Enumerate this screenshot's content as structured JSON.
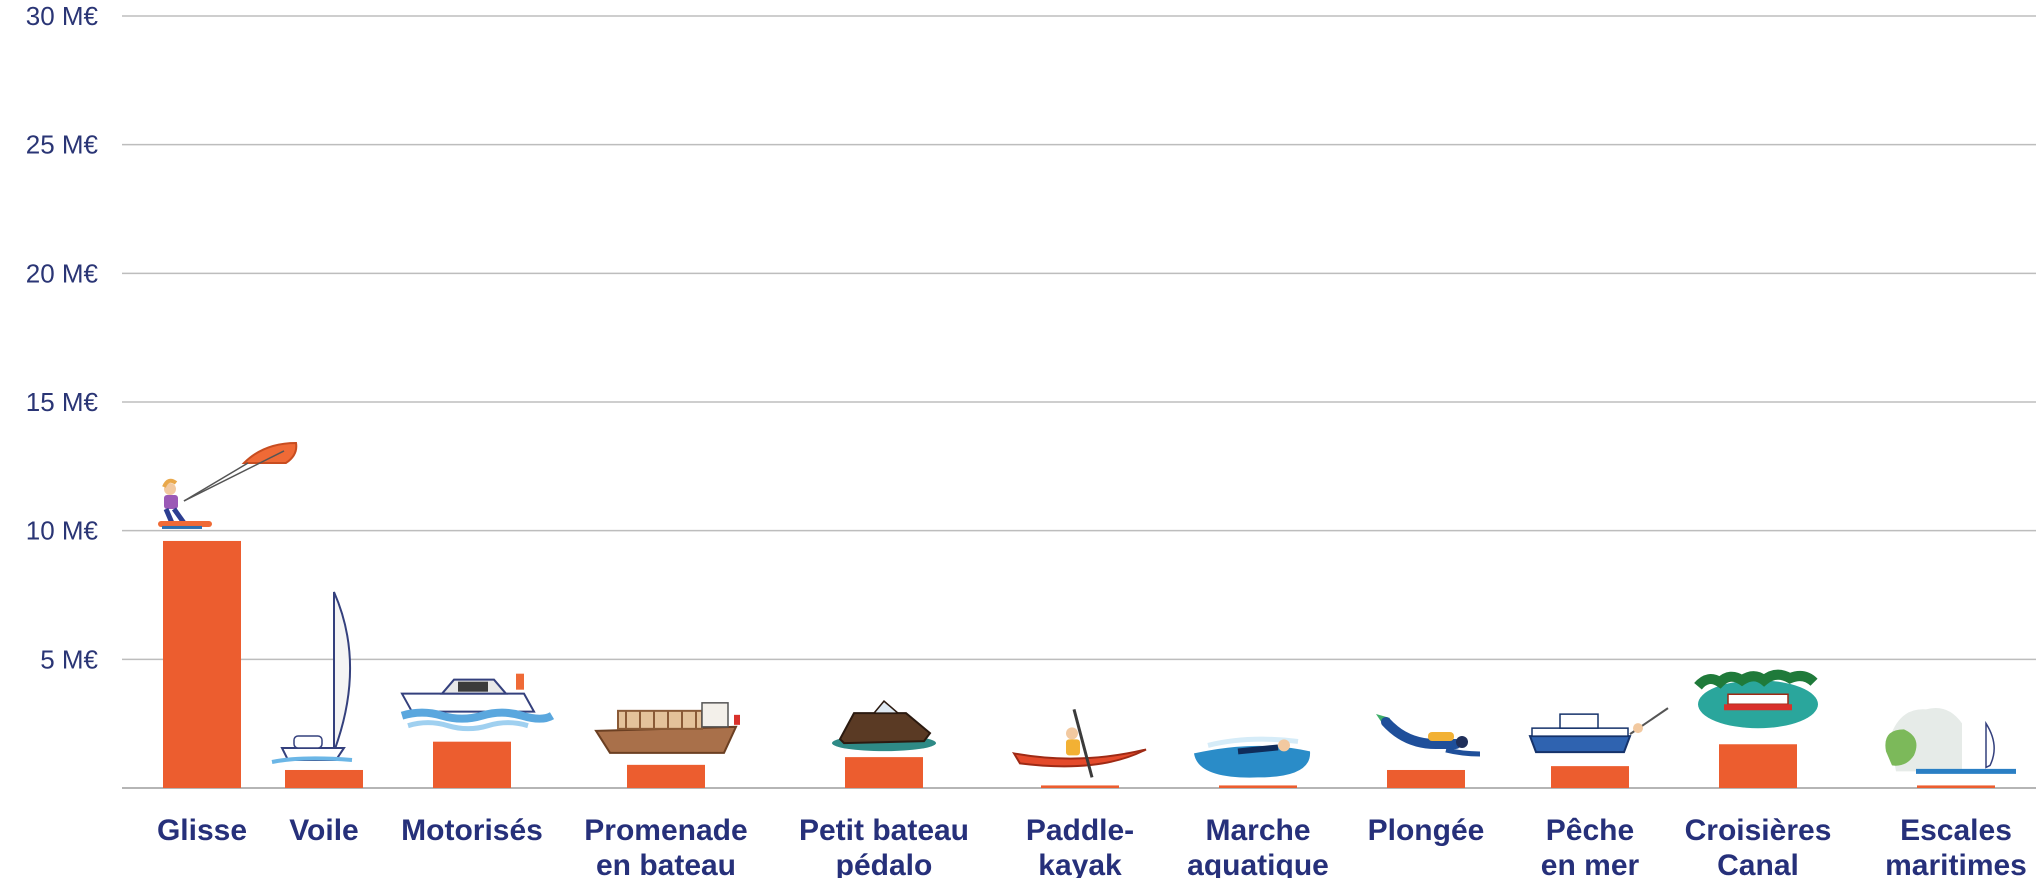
{
  "chart_data": {
    "type": "bar",
    "title": "",
    "xlabel": "",
    "ylabel": "",
    "ylim": [
      0,
      30
    ],
    "y_ticks": [
      {
        "value": 5,
        "label": "5 M€"
      },
      {
        "value": 10,
        "label": "10 M€"
      },
      {
        "value": 15,
        "label": "15 M€"
      },
      {
        "value": 20,
        "label": "20 M€"
      },
      {
        "value": 25,
        "label": "25 M€"
      },
      {
        "value": 30,
        "label": "30 M€"
      }
    ],
    "grid": true,
    "bar_color": "#ec5d2f",
    "categories": [
      {
        "lines": [
          "Glisse"
        ],
        "value": 9.6,
        "icon": "kitesurfer-icon"
      },
      {
        "lines": [
          "Voile"
        ],
        "value": 0.7,
        "icon": "sailboat-icon"
      },
      {
        "lines": [
          "Motorisés"
        ],
        "value": 1.8,
        "icon": "motor-yacht-icon"
      },
      {
        "lines": [
          "Promenade",
          "en bateau"
        ],
        "value": 0.9,
        "icon": "tour-boat-icon"
      },
      {
        "lines": [
          "Petit bateau",
          "pédalo"
        ],
        "value": 1.2,
        "icon": "small-boat-icon"
      },
      {
        "lines": [
          "Paddle-",
          "kayak"
        ],
        "value": 0.1,
        "icon": "kayak-icon"
      },
      {
        "lines": [
          "Marche",
          "aquatique"
        ],
        "value": 0.1,
        "icon": "swimmer-icon"
      },
      {
        "lines": [
          "Plongée"
        ],
        "value": 0.7,
        "icon": "diver-icon"
      },
      {
        "lines": [
          "Pêche",
          "en mer"
        ],
        "value": 0.85,
        "icon": "fishing-boat-icon"
      },
      {
        "lines": [
          "Croisières",
          "Canal"
        ],
        "value": 1.7,
        "icon": "canal-barge-icon"
      },
      {
        "lines": [
          "Escales",
          "maritimes"
        ],
        "value": 0.1,
        "icon": "coastal-cruise-icon"
      }
    ]
  }
}
